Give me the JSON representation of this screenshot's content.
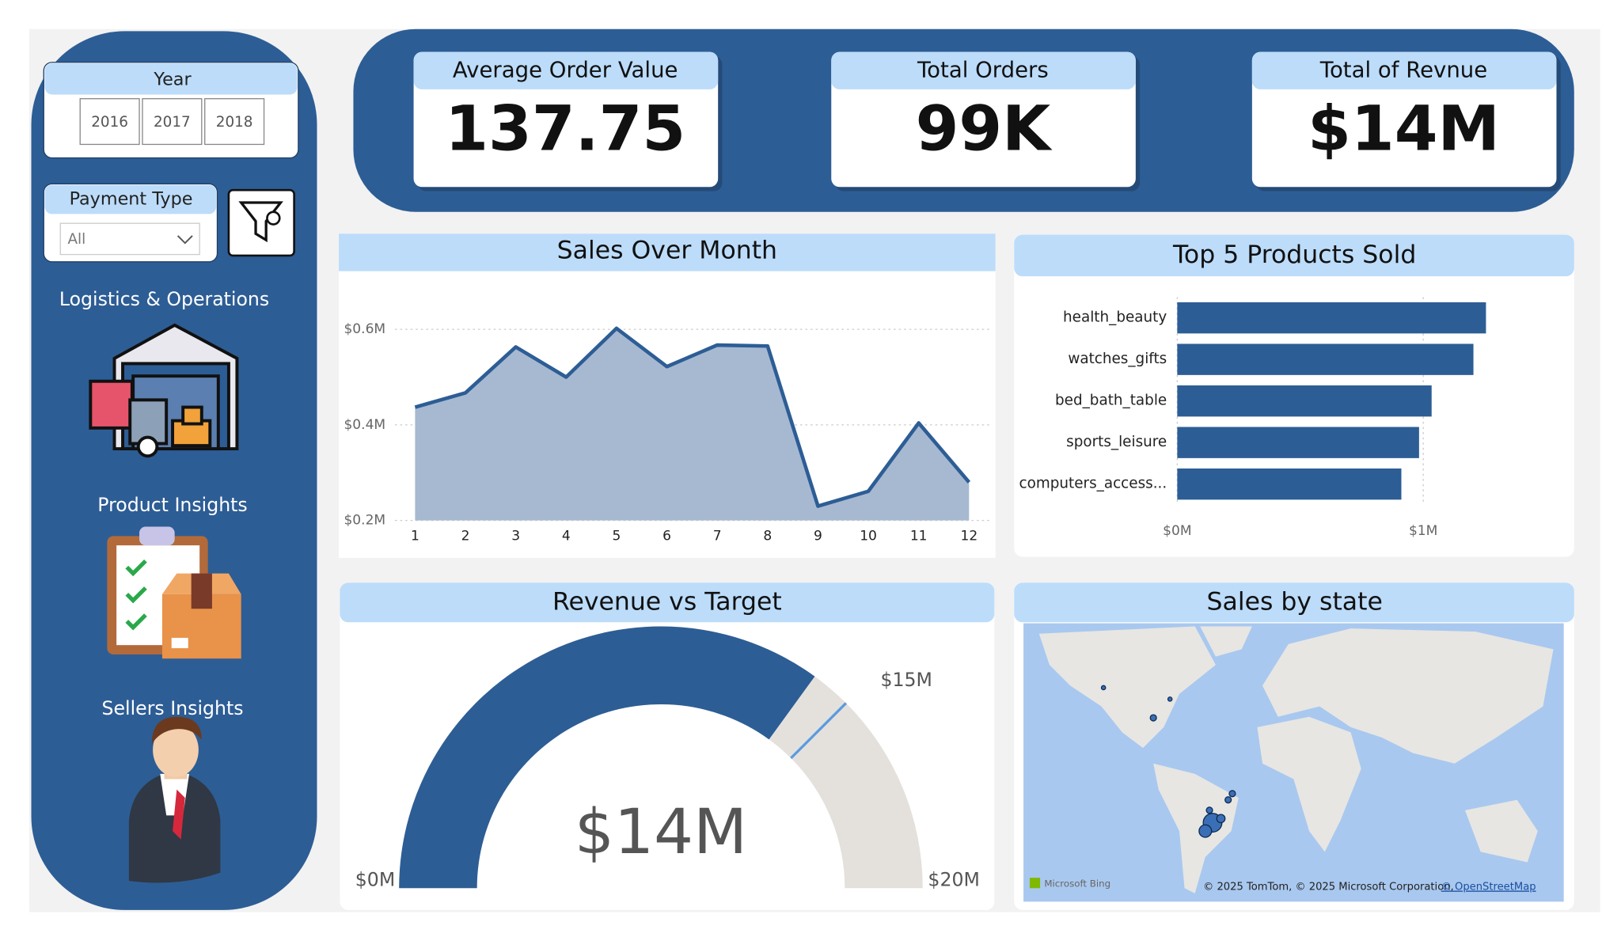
{
  "sidebar": {
    "year_title": "Year",
    "years": [
      "2016",
      "2017",
      "2018"
    ],
    "payment_title": "Payment Type",
    "payment_value": "All",
    "sections": [
      "Logistics & Operations",
      "Product Insights",
      "Sellers Insights"
    ]
  },
  "kpis": [
    {
      "title": "Average Order Value",
      "value": "137.75"
    },
    {
      "title": "Total Orders",
      "value": "99K"
    },
    {
      "title": "Total of Revnue",
      "value": "$14M"
    }
  ],
  "chart_data": [
    {
      "type": "line",
      "title": "Sales Over Month",
      "x": [
        1,
        2,
        3,
        4,
        5,
        6,
        7,
        8,
        9,
        10,
        11,
        12
      ],
      "values": [
        0.437,
        0.467,
        0.563,
        0.5,
        0.602,
        0.522,
        0.567,
        0.565,
        0.23,
        0.261,
        0.404,
        0.28
      ],
      "color": "#2d5d95",
      "fill": "#a7b9d1",
      "xlim": [
        0.6,
        12.4
      ],
      "ylim": [
        0.2,
        0.65
      ],
      "xticks": [
        1,
        2,
        3,
        4,
        5,
        6,
        7,
        8,
        9,
        10,
        11,
        12
      ],
      "yticks": [
        {
          "value": 0.2,
          "label": "$0.2M"
        },
        {
          "value": 0.4,
          "label": "$0.4M"
        },
        {
          "value": 0.6,
          "label": "$0.6M"
        }
      ],
      "grid": true
    },
    {
      "type": "hbar",
      "title": "Top 5 Products Sold",
      "categories": [
        "health_beauty",
        "watches_gifts",
        "bed_bath_table",
        "sports_leisure",
        "computers_access..."
      ],
      "values": [
        1.255,
        1.204,
        1.034,
        0.983,
        0.911
      ],
      "color": "#2d5d95",
      "xlim": [
        0,
        1.55
      ],
      "xticks": [
        {
          "value": 0,
          "label": "$0M"
        },
        {
          "value": 1,
          "label": "$1M"
        }
      ],
      "grid": true
    },
    {
      "type": "gauge",
      "title": "Revenue vs Target",
      "value": 14,
      "value_label": "$14M",
      "min": 0,
      "min_label": "$0M",
      "max": 20,
      "max_label": "$20M",
      "target": 15,
      "target_label": "$15M",
      "color": "#2d5d95",
      "track_color": "#e4e1dc",
      "target_color": "#5b9be0"
    }
  ],
  "map": {
    "title": "Sales by state",
    "logo": "Microsoft Bing",
    "attribution": "© 2025 TomTom, © 2025 Microsoft Corporation,",
    "attribution_link": "© OpenStreetMap"
  }
}
